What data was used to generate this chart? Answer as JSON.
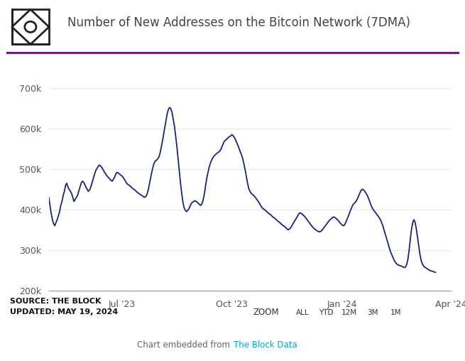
{
  "title": "Number of New Addresses on the Bitcoin Network (7DMA)",
  "source_line1": "SOURCE: THE BLOCK",
  "source_line2": "UPDATED: MAY 19, 2024",
  "line_color": "#1a237e",
  "background_color": "#ffffff",
  "grid_color": "#e8e8e8",
  "accent_line_color": "#9900aa",
  "ylim": [
    200000,
    730000
  ],
  "yticks": [
    200000,
    300000,
    400000,
    500000,
    600000,
    700000
  ],
  "xtick_positions": [
    61,
    153,
    245,
    336
  ],
  "xtick_labels": [
    "Jul '23",
    "Oct '23",
    "Jan '24",
    "Apr '24"
  ],
  "zoom_buttons": [
    "ALL",
    "YTD",
    "12M",
    "3M",
    "1M"
  ],
  "data_points": [
    430000,
    410000,
    390000,
    375000,
    365000,
    360000,
    368000,
    375000,
    385000,
    395000,
    410000,
    420000,
    435000,
    445000,
    460000,
    465000,
    455000,
    450000,
    445000,
    440000,
    430000,
    420000,
    425000,
    430000,
    435000,
    445000,
    455000,
    465000,
    470000,
    468000,
    462000,
    455000,
    450000,
    445000,
    448000,
    455000,
    465000,
    475000,
    485000,
    495000,
    500000,
    505000,
    510000,
    508000,
    505000,
    500000,
    495000,
    490000,
    485000,
    482000,
    478000,
    475000,
    472000,
    470000,
    475000,
    480000,
    488000,
    492000,
    490000,
    488000,
    485000,
    483000,
    480000,
    475000,
    470000,
    465000,
    462000,
    460000,
    458000,
    455000,
    452000,
    450000,
    448000,
    445000,
    442000,
    440000,
    438000,
    436000,
    434000,
    432000,
    430000,
    432000,
    438000,
    448000,
    462000,
    478000,
    492000,
    505000,
    515000,
    520000,
    522000,
    525000,
    530000,
    540000,
    555000,
    570000,
    588000,
    605000,
    622000,
    638000,
    648000,
    652000,
    648000,
    638000,
    622000,
    605000,
    580000,
    555000,
    525000,
    495000,
    465000,
    440000,
    418000,
    405000,
    398000,
    395000,
    398000,
    402000,
    408000,
    415000,
    418000,
    420000,
    422000,
    420000,
    418000,
    415000,
    412000,
    410000,
    415000,
    425000,
    440000,
    460000,
    478000,
    492000,
    505000,
    515000,
    522000,
    528000,
    532000,
    535000,
    538000,
    540000,
    542000,
    545000,
    550000,
    558000,
    565000,
    570000,
    572000,
    575000,
    578000,
    580000,
    582000,
    585000,
    582000,
    578000,
    572000,
    565000,
    558000,
    550000,
    542000,
    535000,
    525000,
    512000,
    498000,
    482000,
    465000,
    452000,
    445000,
    440000,
    438000,
    435000,
    432000,
    428000,
    424000,
    420000,
    415000,
    410000,
    405000,
    402000,
    400000,
    398000,
    395000,
    392000,
    390000,
    388000,
    385000,
    382000,
    380000,
    378000,
    375000,
    372000,
    370000,
    368000,
    365000,
    362000,
    360000,
    358000,
    355000,
    352000,
    350000,
    352000,
    355000,
    360000,
    365000,
    370000,
    375000,
    380000,
    385000,
    390000,
    392000,
    390000,
    388000,
    385000,
    382000,
    378000,
    374000,
    370000,
    366000,
    362000,
    358000,
    355000,
    352000,
    350000,
    348000,
    346000,
    345000,
    346000,
    348000,
    352000,
    356000,
    360000,
    364000,
    368000,
    372000,
    375000,
    378000,
    380000,
    382000,
    380000,
    378000,
    375000,
    372000,
    368000,
    365000,
    362000,
    360000,
    362000,
    368000,
    375000,
    382000,
    390000,
    398000,
    405000,
    412000,
    415000,
    418000,
    422000,
    428000,
    435000,
    442000,
    448000,
    450000,
    448000,
    445000,
    440000,
    435000,
    428000,
    420000,
    412000,
    405000,
    400000,
    396000,
    392000,
    388000,
    384000,
    380000,
    375000,
    368000,
    360000,
    350000,
    340000,
    330000,
    320000,
    310000,
    300000,
    292000,
    285000,
    278000,
    272000,
    268000,
    265000,
    263000,
    262000,
    261000,
    260000,
    258000,
    257000,
    258000,
    265000,
    278000,
    300000,
    328000,
    352000,
    368000,
    375000,
    368000,
    352000,
    332000,
    310000,
    290000,
    275000,
    266000,
    261000,
    258000,
    256000,
    254000,
    252000,
    250000,
    249000,
    248000,
    247000,
    246000,
    245000
  ]
}
